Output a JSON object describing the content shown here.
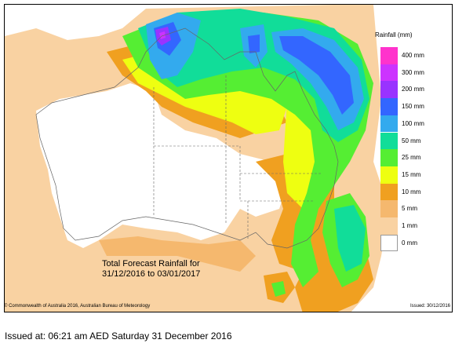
{
  "map": {
    "legend": {
      "title": "Rainfall (mm)",
      "items": [
        {
          "label": "400 mm",
          "color": "#ff33cc"
        },
        {
          "label": "300 mm",
          "color": "#cc33ff"
        },
        {
          "label": "200 mm",
          "color": "#9933ff"
        },
        {
          "label": "150 mm",
          "color": "#3366ff"
        },
        {
          "label": "100 mm",
          "color": "#33aaee"
        },
        {
          "label": "50 mm",
          "color": "#11dd99"
        },
        {
          "label": "25 mm",
          "color": "#55ee33"
        },
        {
          "label": "15 mm",
          "color": "#eeff11"
        },
        {
          "label": "10 mm",
          "color": "#f0a020"
        },
        {
          "label": "5 mm",
          "color": "#f5b86e"
        },
        {
          "label": "1 mm",
          "color": "#f9d2a2"
        },
        {
          "label": "0 mm",
          "color": "#ffffff"
        }
      ]
    },
    "forecast_title_line1": "Total Forecast Rainfall for",
    "forecast_title_line2": "31/12/2016 to 03/01/2017",
    "copyright": "© Commonwealth of Australia 2016, Australian Bureau of Meteorology",
    "issued_small": "Issued: 30/12/2016"
  },
  "issued_at": "Issued at: 06:21 am AED Saturday 31 December 2016"
}
